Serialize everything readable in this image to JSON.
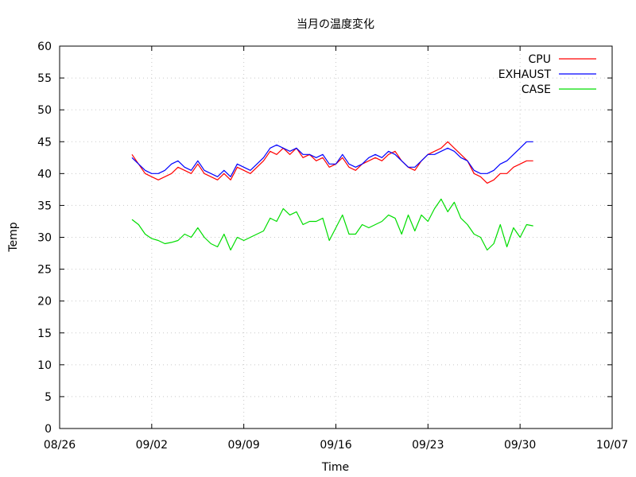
{
  "chart_data": {
    "type": "line",
    "title": "当月の温度変化",
    "xlabel": "Time",
    "ylabel": "Temp",
    "x_ticks": [
      "08/26",
      "09/02",
      "09/09",
      "09/16",
      "09/23",
      "09/30",
      "10/07"
    ],
    "xlim": [
      "08/26",
      "10/07"
    ],
    "y_ticks": [
      0,
      5,
      10,
      15,
      20,
      25,
      30,
      35,
      40,
      45,
      50,
      55,
      60
    ],
    "ylim": [
      0,
      60
    ],
    "grid": true,
    "legend_position": "top-right",
    "series": [
      {
        "name": "CPU",
        "color": "#ff0000",
        "x": [
          "08/31 12:00",
          "09/01 00:00",
          "09/01 12:00",
          "09/02 00:00",
          "09/02 12:00",
          "09/03 00:00",
          "09/03 12:00",
          "09/04 00:00",
          "09/04 12:00",
          "09/05 00:00",
          "09/05 12:00",
          "09/06 00:00",
          "09/06 12:00",
          "09/07 00:00",
          "09/07 12:00",
          "09/08 00:00",
          "09/08 12:00",
          "09/09 00:00",
          "09/09 12:00",
          "09/10 00:00",
          "09/10 12:00",
          "09/11 00:00",
          "09/11 12:00",
          "09/12 00:00",
          "09/12 12:00",
          "09/13 00:00",
          "09/13 12:00",
          "09/14 00:00",
          "09/14 12:00",
          "09/15 00:00",
          "09/15 12:00",
          "09/16 00:00",
          "09/16 12:00",
          "09/17 00:00",
          "09/17 12:00",
          "09/18 00:00",
          "09/18 12:00",
          "09/19 00:00",
          "09/19 12:00",
          "09/20 00:00",
          "09/20 12:00",
          "09/21 00:00",
          "09/21 12:00",
          "09/22 00:00",
          "09/22 12:00",
          "09/23 00:00",
          "09/23 12:00",
          "09/24 00:00",
          "09/24 12:00",
          "09/25 00:00",
          "09/25 12:00",
          "09/26 00:00",
          "09/26 12:00",
          "09/27 00:00",
          "09/27 12:00",
          "09/28 00:00",
          "09/28 12:00",
          "09/29 00:00",
          "09/29 12:00",
          "09/30 00:00",
          "09/30 12:00",
          "10/01 00:00"
        ],
        "values": [
          43,
          41.5,
          40,
          39.5,
          39,
          39.5,
          40,
          41,
          40.5,
          40,
          41.5,
          40,
          39.5,
          39,
          40,
          39,
          41,
          40.5,
          40,
          41,
          42,
          43.5,
          43,
          44,
          43,
          44,
          42.5,
          43,
          42,
          42.5,
          41,
          41.5,
          42.5,
          41,
          40.5,
          41.5,
          42,
          42.5,
          42,
          43,
          43.5,
          42,
          41,
          40.5,
          42,
          43,
          43.5,
          44,
          45,
          44,
          43,
          42,
          40,
          39.5,
          38.5,
          39,
          40,
          40,
          41,
          41.5,
          42,
          42
        ]
      },
      {
        "name": "EXHAUST",
        "color": "#0000ff",
        "x": [
          "08/31 12:00",
          "09/01 00:00",
          "09/01 12:00",
          "09/02 00:00",
          "09/02 12:00",
          "09/03 00:00",
          "09/03 12:00",
          "09/04 00:00",
          "09/04 12:00",
          "09/05 00:00",
          "09/05 12:00",
          "09/06 00:00",
          "09/06 12:00",
          "09/07 00:00",
          "09/07 12:00",
          "09/08 00:00",
          "09/08 12:00",
          "09/09 00:00",
          "09/09 12:00",
          "09/10 00:00",
          "09/10 12:00",
          "09/11 00:00",
          "09/11 12:00",
          "09/12 00:00",
          "09/12 12:00",
          "09/13 00:00",
          "09/13 12:00",
          "09/14 00:00",
          "09/14 12:00",
          "09/15 00:00",
          "09/15 12:00",
          "09/16 00:00",
          "09/16 12:00",
          "09/17 00:00",
          "09/17 12:00",
          "09/18 00:00",
          "09/18 12:00",
          "09/19 00:00",
          "09/19 12:00",
          "09/20 00:00",
          "09/20 12:00",
          "09/21 00:00",
          "09/21 12:00",
          "09/22 00:00",
          "09/22 12:00",
          "09/23 00:00",
          "09/23 12:00",
          "09/24 00:00",
          "09/24 12:00",
          "09/25 00:00",
          "09/25 12:00",
          "09/26 00:00",
          "09/26 12:00",
          "09/27 00:00",
          "09/27 12:00",
          "09/28 00:00",
          "09/28 12:00",
          "09/29 00:00",
          "09/29 12:00",
          "09/30 00:00",
          "09/30 12:00",
          "10/01 00:00"
        ],
        "values": [
          42.5,
          41.5,
          40.5,
          40,
          40,
          40.5,
          41.5,
          42,
          41,
          40.5,
          42,
          40.5,
          40,
          39.5,
          40.5,
          39.5,
          41.5,
          41,
          40.5,
          41.5,
          42.5,
          44,
          44.5,
          44,
          43.5,
          44,
          43,
          43,
          42.5,
          43,
          41.5,
          41.5,
          43,
          41.5,
          41,
          41.5,
          42.5,
          43,
          42.5,
          43.5,
          43,
          42,
          41,
          41,
          42,
          43,
          43,
          43.5,
          44,
          43.5,
          42.5,
          42,
          40.5,
          40,
          40,
          40.5,
          41.5,
          42,
          43,
          44,
          45,
          45
        ]
      },
      {
        "name": "CASE",
        "color": "#00dd00",
        "x": [
          "08/31 12:00",
          "09/01 00:00",
          "09/01 12:00",
          "09/02 00:00",
          "09/02 12:00",
          "09/03 00:00",
          "09/03 12:00",
          "09/04 00:00",
          "09/04 12:00",
          "09/05 00:00",
          "09/05 12:00",
          "09/06 00:00",
          "09/06 12:00",
          "09/07 00:00",
          "09/07 12:00",
          "09/08 00:00",
          "09/08 12:00",
          "09/09 00:00",
          "09/09 12:00",
          "09/10 00:00",
          "09/10 12:00",
          "09/11 00:00",
          "09/11 12:00",
          "09/12 00:00",
          "09/12 12:00",
          "09/13 00:00",
          "09/13 12:00",
          "09/14 00:00",
          "09/14 12:00",
          "09/15 00:00",
          "09/15 12:00",
          "09/16 00:00",
          "09/16 12:00",
          "09/17 00:00",
          "09/17 12:00",
          "09/18 00:00",
          "09/18 12:00",
          "09/19 00:00",
          "09/19 12:00",
          "09/20 00:00",
          "09/20 12:00",
          "09/21 00:00",
          "09/21 12:00",
          "09/22 00:00",
          "09/22 12:00",
          "09/23 00:00",
          "09/23 12:00",
          "09/24 00:00",
          "09/24 12:00",
          "09/25 00:00",
          "09/25 12:00",
          "09/26 00:00",
          "09/26 12:00",
          "09/27 00:00",
          "09/27 12:00",
          "09/28 00:00",
          "09/28 12:00",
          "09/29 00:00",
          "09/29 12:00",
          "09/30 00:00",
          "09/30 12:00",
          "10/01 00:00"
        ],
        "values": [
          32.8,
          32,
          30.5,
          29.8,
          29.5,
          29,
          29.2,
          29.5,
          30.5,
          30,
          31.5,
          30,
          29,
          28.5,
          30.5,
          28,
          30,
          29.5,
          30,
          30.5,
          31,
          33,
          32.5,
          34.5,
          33.5,
          34,
          32,
          32.5,
          32.5,
          33,
          29.5,
          31.5,
          33.5,
          30.5,
          30.5,
          32,
          31.5,
          32,
          32.5,
          33.5,
          33,
          30.5,
          33.5,
          31,
          33.5,
          32.5,
          34.5,
          36,
          34,
          35.5,
          33,
          32,
          30.5,
          30,
          28,
          29,
          32,
          28.5,
          31.5,
          30,
          32,
          31.8
        ]
      }
    ]
  }
}
